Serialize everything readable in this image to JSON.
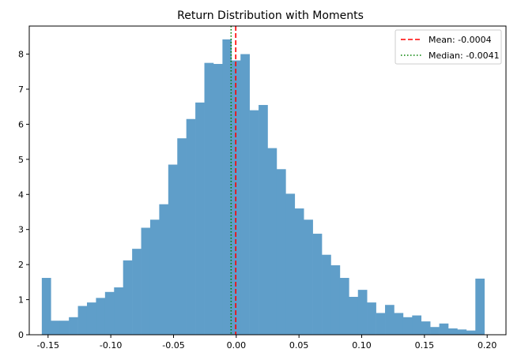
{
  "chart_data": {
    "type": "bar",
    "title": "Return Distribution with Moments",
    "xlabel": "",
    "ylabel": "",
    "xlim": [
      -0.165,
      0.215
    ],
    "ylim": [
      0,
      8.8
    ],
    "x_ticks": [
      -0.15,
      -0.1,
      -0.05,
      0.0,
      0.05,
      0.1,
      0.15,
      0.2
    ],
    "x_tick_labels": [
      "-0.15",
      "-0.10",
      "-0.05",
      "0.00",
      "0.05",
      "0.10",
      "0.15",
      "0.20"
    ],
    "y_ticks": [
      0,
      1,
      2,
      3,
      4,
      5,
      6,
      7,
      8
    ],
    "y_tick_labels": [
      "0",
      "1",
      "2",
      "3",
      "4",
      "5",
      "6",
      "7",
      "8"
    ],
    "bins_start": -0.155,
    "bin_width": 0.0072,
    "values": [
      1.62,
      0.4,
      0.4,
      0.5,
      0.82,
      0.92,
      1.05,
      1.22,
      1.35,
      2.12,
      2.45,
      3.05,
      3.28,
      3.72,
      4.85,
      5.6,
      6.15,
      6.62,
      7.75,
      7.72,
      8.42,
      7.82,
      8.0,
      6.4,
      6.55,
      5.32,
      4.72,
      4.02,
      3.6,
      3.28,
      2.88,
      2.28,
      1.98,
      1.62,
      1.08,
      1.28,
      0.92,
      0.62,
      0.85,
      0.62,
      0.5,
      0.55,
      0.38,
      0.22,
      0.32,
      0.18,
      0.15,
      0.12,
      1.6
    ],
    "bar_color": "#5f9ec9",
    "grid": false,
    "lines": [
      {
        "label": "Mean: -0.0004",
        "x": -0.0004,
        "color": "#ff0000",
        "style": "dashed"
      },
      {
        "label": "Median: -0.0041",
        "x": -0.0041,
        "color": "#008000",
        "style": "dotted"
      }
    ],
    "legend_position": "top-right"
  }
}
